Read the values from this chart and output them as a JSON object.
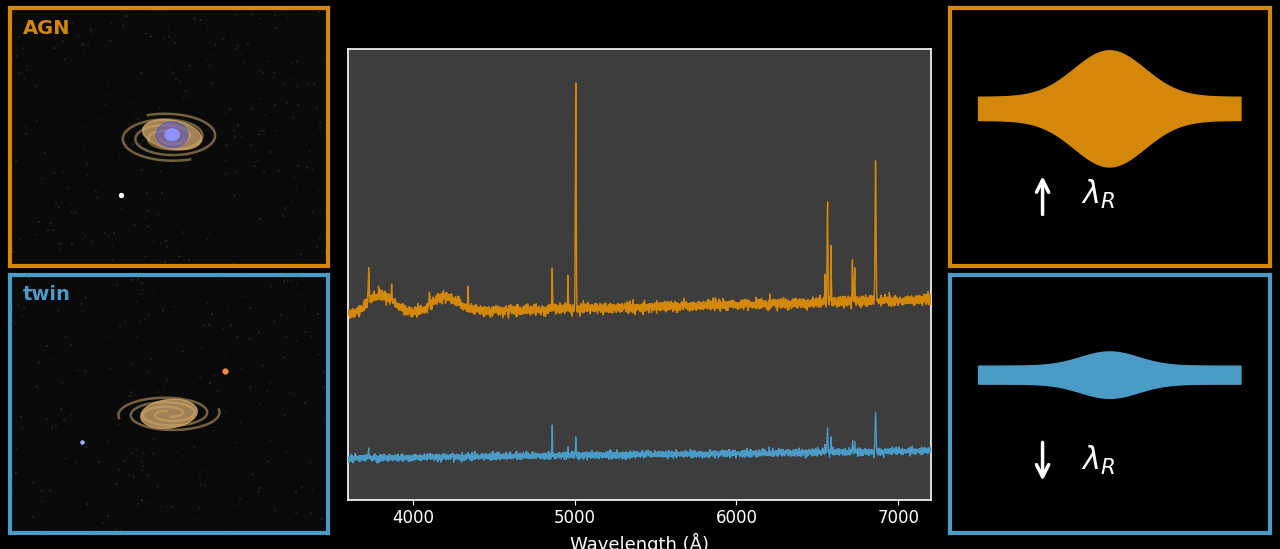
{
  "bg_color": "#000000",
  "orange_color": "#D4880A",
  "blue_color": "#4A9CC7",
  "spectrum_bg": "#3a3a3a",
  "agn_label": "AGN",
  "twin_label": "twin",
  "xlabel": "Wavelength (Å)",
  "xlim": [
    3600,
    7200
  ],
  "agn_border_color": "#D4880A",
  "twin_border_color": "#4A9CC7",
  "tick_fontsize": 12,
  "label_fontsize": 13
}
